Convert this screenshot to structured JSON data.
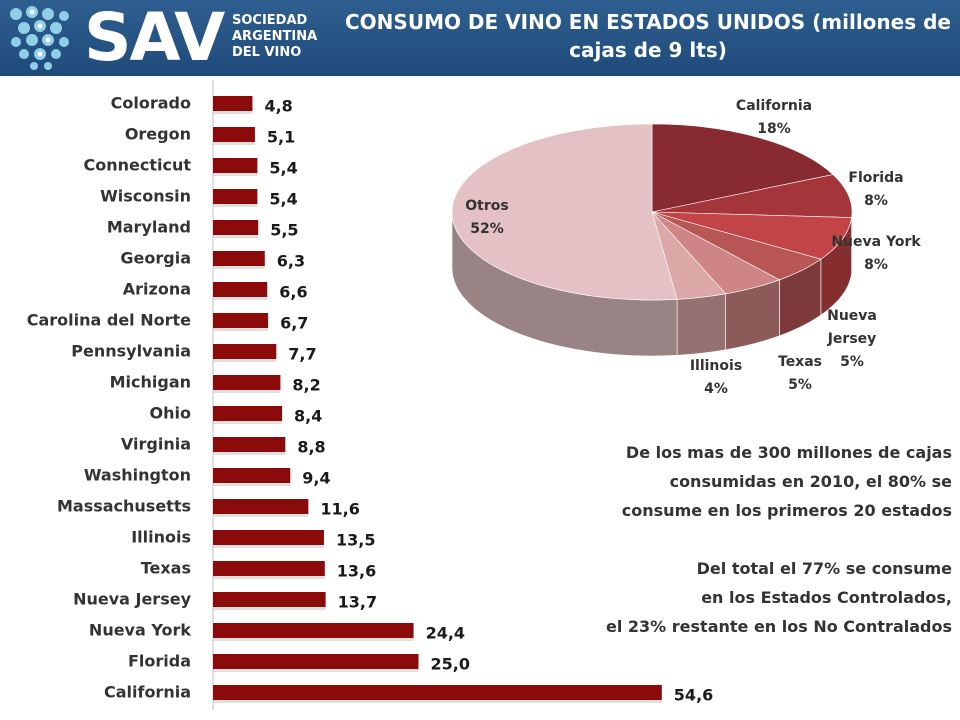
{
  "header": {
    "logo_text": "SAV",
    "logo_sub": [
      "SOCIEDAD",
      "ARGENTINA",
      "DEL VINO"
    ],
    "title": "CONSUMO DE VINO EN ESTADOS UNIDOS (millones de cajas de 9 lts)",
    "color": "#24507f"
  },
  "chart_data": [
    {
      "type": "bar",
      "orientation": "horizontal",
      "categories": [
        "Colorado",
        "Oregon",
        "Connecticut",
        "Wisconsin",
        "Maryland",
        "Georgia",
        "Arizona",
        "Carolina del Norte",
        "Pennsylvania",
        "Michigan",
        "Ohio",
        "Virginia",
        "Washington",
        "Massachusetts",
        "Illinois",
        "Texas",
        "Nueva Jersey",
        "Nueva York",
        "Florida",
        "California"
      ],
      "values": [
        4.8,
        5.1,
        5.4,
        5.4,
        5.5,
        6.3,
        6.6,
        6.7,
        7.7,
        8.2,
        8.4,
        8.8,
        9.4,
        11.6,
        13.5,
        13.6,
        13.7,
        24.4,
        25.0,
        54.6
      ],
      "value_labels": [
        "4,8",
        "5,1",
        "5,4",
        "5,4",
        "5,5",
        "6,3",
        "6,6",
        "6,7",
        "7,7",
        "8,2",
        "8,4",
        "8,8",
        "9,4",
        "11,6",
        "13,5",
        "13,6",
        "13,7",
        "24,4",
        "25,0",
        "54,6"
      ],
      "xlim": [
        0,
        60
      ],
      "bar_color": "#8b0a0a",
      "grid": false,
      "legend": "none"
    },
    {
      "type": "pie",
      "style": "3d",
      "slices": [
        {
          "name": "California",
          "value": 18,
          "label": "18%",
          "color": "#872b30"
        },
        {
          "name": "Florida",
          "value": 8,
          "label": "8%",
          "color": "#a4363b"
        },
        {
          "name": "Nueva York",
          "value": 8,
          "label": "8%",
          "color": "#c24446"
        },
        {
          "name": "Nueva Jersey",
          "value": 5,
          "label": "5%",
          "color": "#b85656"
        },
        {
          "name": "Texas",
          "value": 5,
          "label": "5%",
          "color": "#cf8585"
        },
        {
          "name": "Illinois",
          "value": 4,
          "label": "4%",
          "color": "#dba7a7"
        },
        {
          "name": "Otros",
          "value": 52,
          "label": "52%",
          "color": "#e3c1c4"
        }
      ],
      "slice_label_lines": {
        "California": [
          "California"
        ],
        "Florida": [
          "Florida"
        ],
        "Nueva York": [
          "Nueva York"
        ],
        "Nueva Jersey": [
          "Nueva",
          "Jersey"
        ],
        "Texas": [
          "Texas"
        ],
        "Illinois": [
          "Illinois"
        ],
        "Otros": [
          "Otros"
        ]
      },
      "legend": "none"
    }
  ],
  "note": {
    "lines_1": [
      "De los mas de 300 millones de cajas",
      "consumidas en 2010, el 80% se",
      "consume en los primeros 20 estados"
    ],
    "lines_2": [
      "Del total el 77% se consume",
      "en los Estados Controlados,",
      "el 23% restante en los No Contralados"
    ]
  }
}
